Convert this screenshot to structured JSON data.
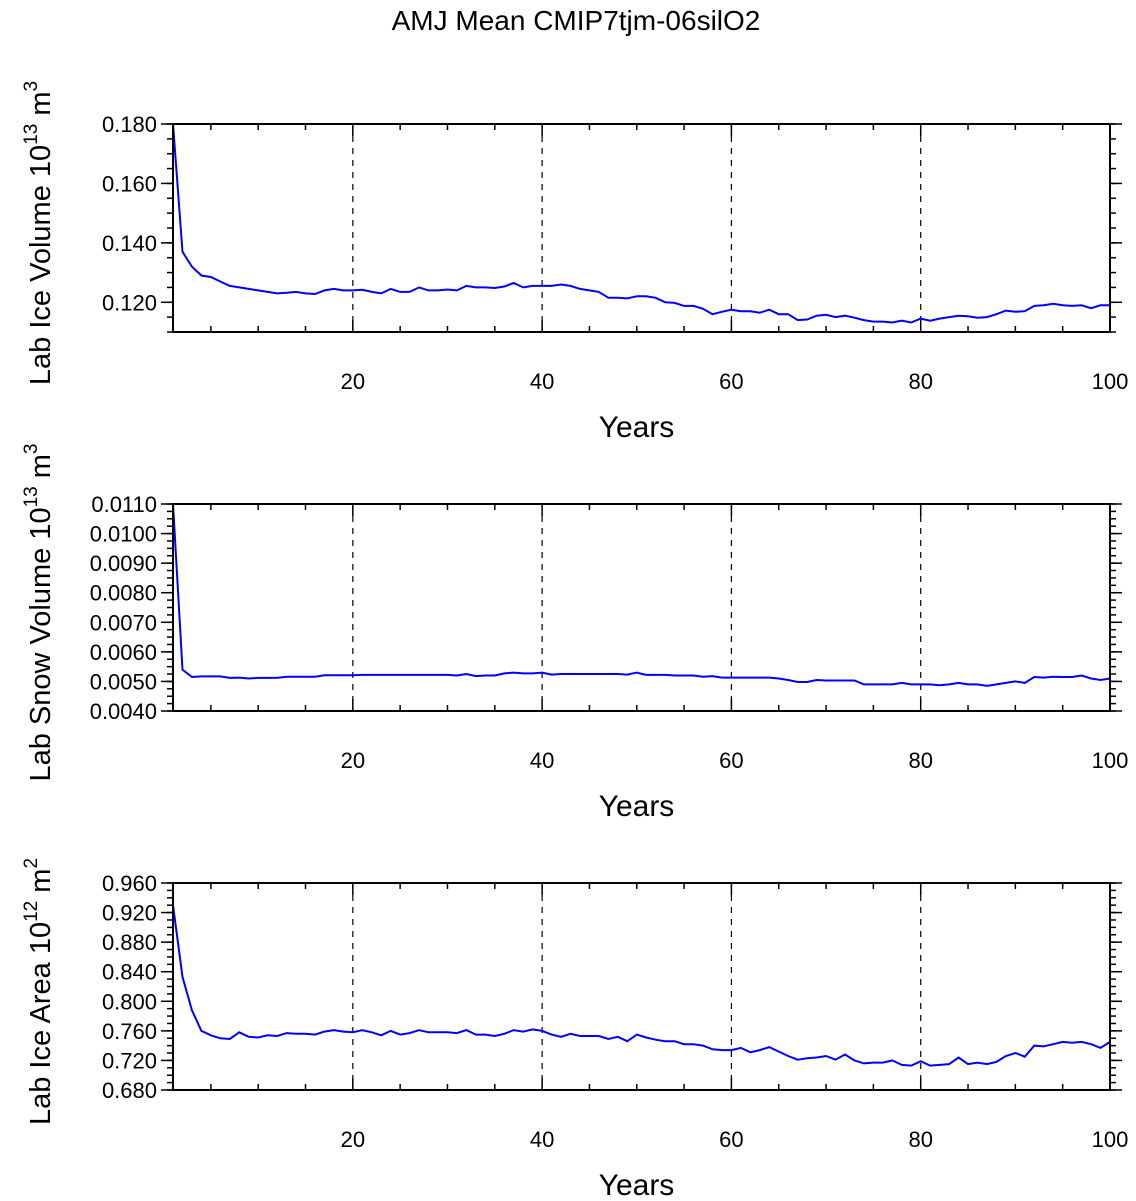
{
  "title": "AMJ Mean CMIP7tjm-06silO2",
  "line_color": "#0000ff",
  "chart_data": [
    {
      "type": "line",
      "xlabel": "Years",
      "ylabel": [
        {
          "t": "Lab Ice Volume 10"
        },
        {
          "t": "13",
          "sup": true
        },
        {
          "t": " m"
        },
        {
          "t": "3",
          "sup": true
        }
      ],
      "xlim": [
        1,
        100
      ],
      "ylim": [
        0.11,
        0.18
      ],
      "xticks": [
        20,
        40,
        60,
        80,
        100
      ],
      "yticks": [
        0.12,
        0.14,
        0.16,
        0.18
      ],
      "ytick_labels": [
        "0.120",
        "0.140",
        "0.160",
        "0.180"
      ],
      "yminor": 0.005,
      "grid_x": [
        20,
        40,
        60,
        80
      ],
      "values": [
        0.18,
        0.137,
        0.132,
        0.129,
        0.1285,
        0.127,
        0.1255,
        0.125,
        0.1245,
        0.124,
        0.1235,
        0.123,
        0.1232,
        0.1235,
        0.123,
        0.1228,
        0.124,
        0.1245,
        0.124,
        0.124,
        0.1242,
        0.1235,
        0.123,
        0.1245,
        0.1235,
        0.1235,
        0.125,
        0.124,
        0.124,
        0.1243,
        0.124,
        0.1255,
        0.125,
        0.125,
        0.1248,
        0.1253,
        0.1265,
        0.125,
        0.1255,
        0.1255,
        0.1255,
        0.126,
        0.1255,
        0.1245,
        0.124,
        0.1235,
        0.1215,
        0.1215,
        0.1213,
        0.122,
        0.122,
        0.1215,
        0.12,
        0.1198,
        0.1188,
        0.1188,
        0.1178,
        0.116,
        0.1168,
        0.1175,
        0.117,
        0.117,
        0.1165,
        0.1175,
        0.116,
        0.116,
        0.114,
        0.1142,
        0.1155,
        0.1158,
        0.115,
        0.1155,
        0.1148,
        0.114,
        0.1135,
        0.1135,
        0.1132,
        0.1138,
        0.1132,
        0.1145,
        0.1138,
        0.1145,
        0.115,
        0.1155,
        0.1153,
        0.1148,
        0.115,
        0.116,
        0.1172,
        0.1168,
        0.117,
        0.1188,
        0.119,
        0.1195,
        0.119,
        0.1188,
        0.119,
        0.118,
        0.119,
        0.119
      ]
    },
    {
      "type": "line",
      "xlabel": "Years",
      "ylabel": [
        {
          "t": "Lab Snow Volume 10"
        },
        {
          "t": "13",
          "sup": true
        },
        {
          "t": " m"
        },
        {
          "t": "3",
          "sup": true
        }
      ],
      "xlim": [
        1,
        100
      ],
      "ylim": [
        0.004,
        0.011
      ],
      "xticks": [
        20,
        40,
        60,
        80,
        100
      ],
      "yticks": [
        0.004,
        0.005,
        0.006,
        0.007,
        0.008,
        0.009,
        0.01,
        0.011
      ],
      "ytick_labels": [
        "0.0040",
        "0.0050",
        "0.0060",
        "0.0070",
        "0.0080",
        "0.0090",
        "0.0100",
        "0.0110"
      ],
      "yminor": 0.00025,
      "grid_x": [
        20,
        40,
        60,
        80
      ],
      "values": [
        0.011,
        0.0054,
        0.00515,
        0.00517,
        0.00517,
        0.00517,
        0.00512,
        0.00513,
        0.0051,
        0.00512,
        0.00512,
        0.00512,
        0.00516,
        0.00516,
        0.00516,
        0.00516,
        0.00521,
        0.00521,
        0.00521,
        0.00521,
        0.00522,
        0.00522,
        0.00522,
        0.00522,
        0.00522,
        0.00522,
        0.00522,
        0.00522,
        0.00522,
        0.00522,
        0.0052,
        0.00525,
        0.00518,
        0.0052,
        0.0052,
        0.00527,
        0.0053,
        0.00527,
        0.00527,
        0.0053,
        0.00523,
        0.00525,
        0.00525,
        0.00525,
        0.00525,
        0.00525,
        0.00525,
        0.00525,
        0.00523,
        0.0053,
        0.00522,
        0.00522,
        0.00522,
        0.0052,
        0.0052,
        0.0052,
        0.00516,
        0.00518,
        0.00513,
        0.00513,
        0.00513,
        0.00513,
        0.00513,
        0.00513,
        0.0051,
        0.00505,
        0.00498,
        0.00498,
        0.00505,
        0.00503,
        0.00503,
        0.00503,
        0.00503,
        0.0049,
        0.0049,
        0.0049,
        0.0049,
        0.00495,
        0.0049,
        0.0049,
        0.0049,
        0.00487,
        0.0049,
        0.00495,
        0.0049,
        0.0049,
        0.00485,
        0.0049,
        0.00495,
        0.005,
        0.00495,
        0.00515,
        0.00513,
        0.00516,
        0.00515,
        0.00515,
        0.0052,
        0.0051,
        0.00505,
        0.0051
      ]
    },
    {
      "type": "line",
      "xlabel": "Years",
      "ylabel": [
        {
          "t": "Lab Ice Area 10"
        },
        {
          "t": "12",
          "sup": true
        },
        {
          "t": " m"
        },
        {
          "t": "2",
          "sup": true
        }
      ],
      "xlim": [
        1,
        100
      ],
      "ylim": [
        0.68,
        0.96
      ],
      "xticks": [
        20,
        40,
        60,
        80,
        100
      ],
      "yticks": [
        0.68,
        0.72,
        0.76,
        0.8,
        0.84,
        0.88,
        0.92,
        0.96
      ],
      "ytick_labels": [
        "0.680",
        "0.720",
        "0.760",
        "0.800",
        "0.840",
        "0.880",
        "0.920",
        "0.960"
      ],
      "yminor": 0.01,
      "grid_x": [
        20,
        40,
        60,
        80
      ],
      "values": [
        0.93,
        0.833,
        0.788,
        0.76,
        0.754,
        0.75,
        0.749,
        0.758,
        0.752,
        0.751,
        0.754,
        0.753,
        0.757,
        0.756,
        0.756,
        0.755,
        0.759,
        0.761,
        0.759,
        0.758,
        0.761,
        0.758,
        0.754,
        0.76,
        0.755,
        0.757,
        0.761,
        0.758,
        0.758,
        0.758,
        0.757,
        0.761,
        0.755,
        0.755,
        0.753,
        0.756,
        0.761,
        0.759,
        0.762,
        0.76,
        0.755,
        0.752,
        0.756,
        0.753,
        0.753,
        0.753,
        0.749,
        0.752,
        0.746,
        0.755,
        0.751,
        0.748,
        0.746,
        0.746,
        0.742,
        0.742,
        0.74,
        0.735,
        0.734,
        0.734,
        0.737,
        0.731,
        0.734,
        0.738,
        0.732,
        0.726,
        0.721,
        0.723,
        0.724,
        0.726,
        0.721,
        0.728,
        0.72,
        0.716,
        0.717,
        0.717,
        0.72,
        0.714,
        0.713,
        0.719,
        0.713,
        0.714,
        0.715,
        0.724,
        0.715,
        0.717,
        0.715,
        0.718,
        0.726,
        0.73,
        0.725,
        0.74,
        0.739,
        0.742,
        0.745,
        0.744,
        0.745,
        0.742,
        0.737,
        0.745
      ]
    }
  ]
}
